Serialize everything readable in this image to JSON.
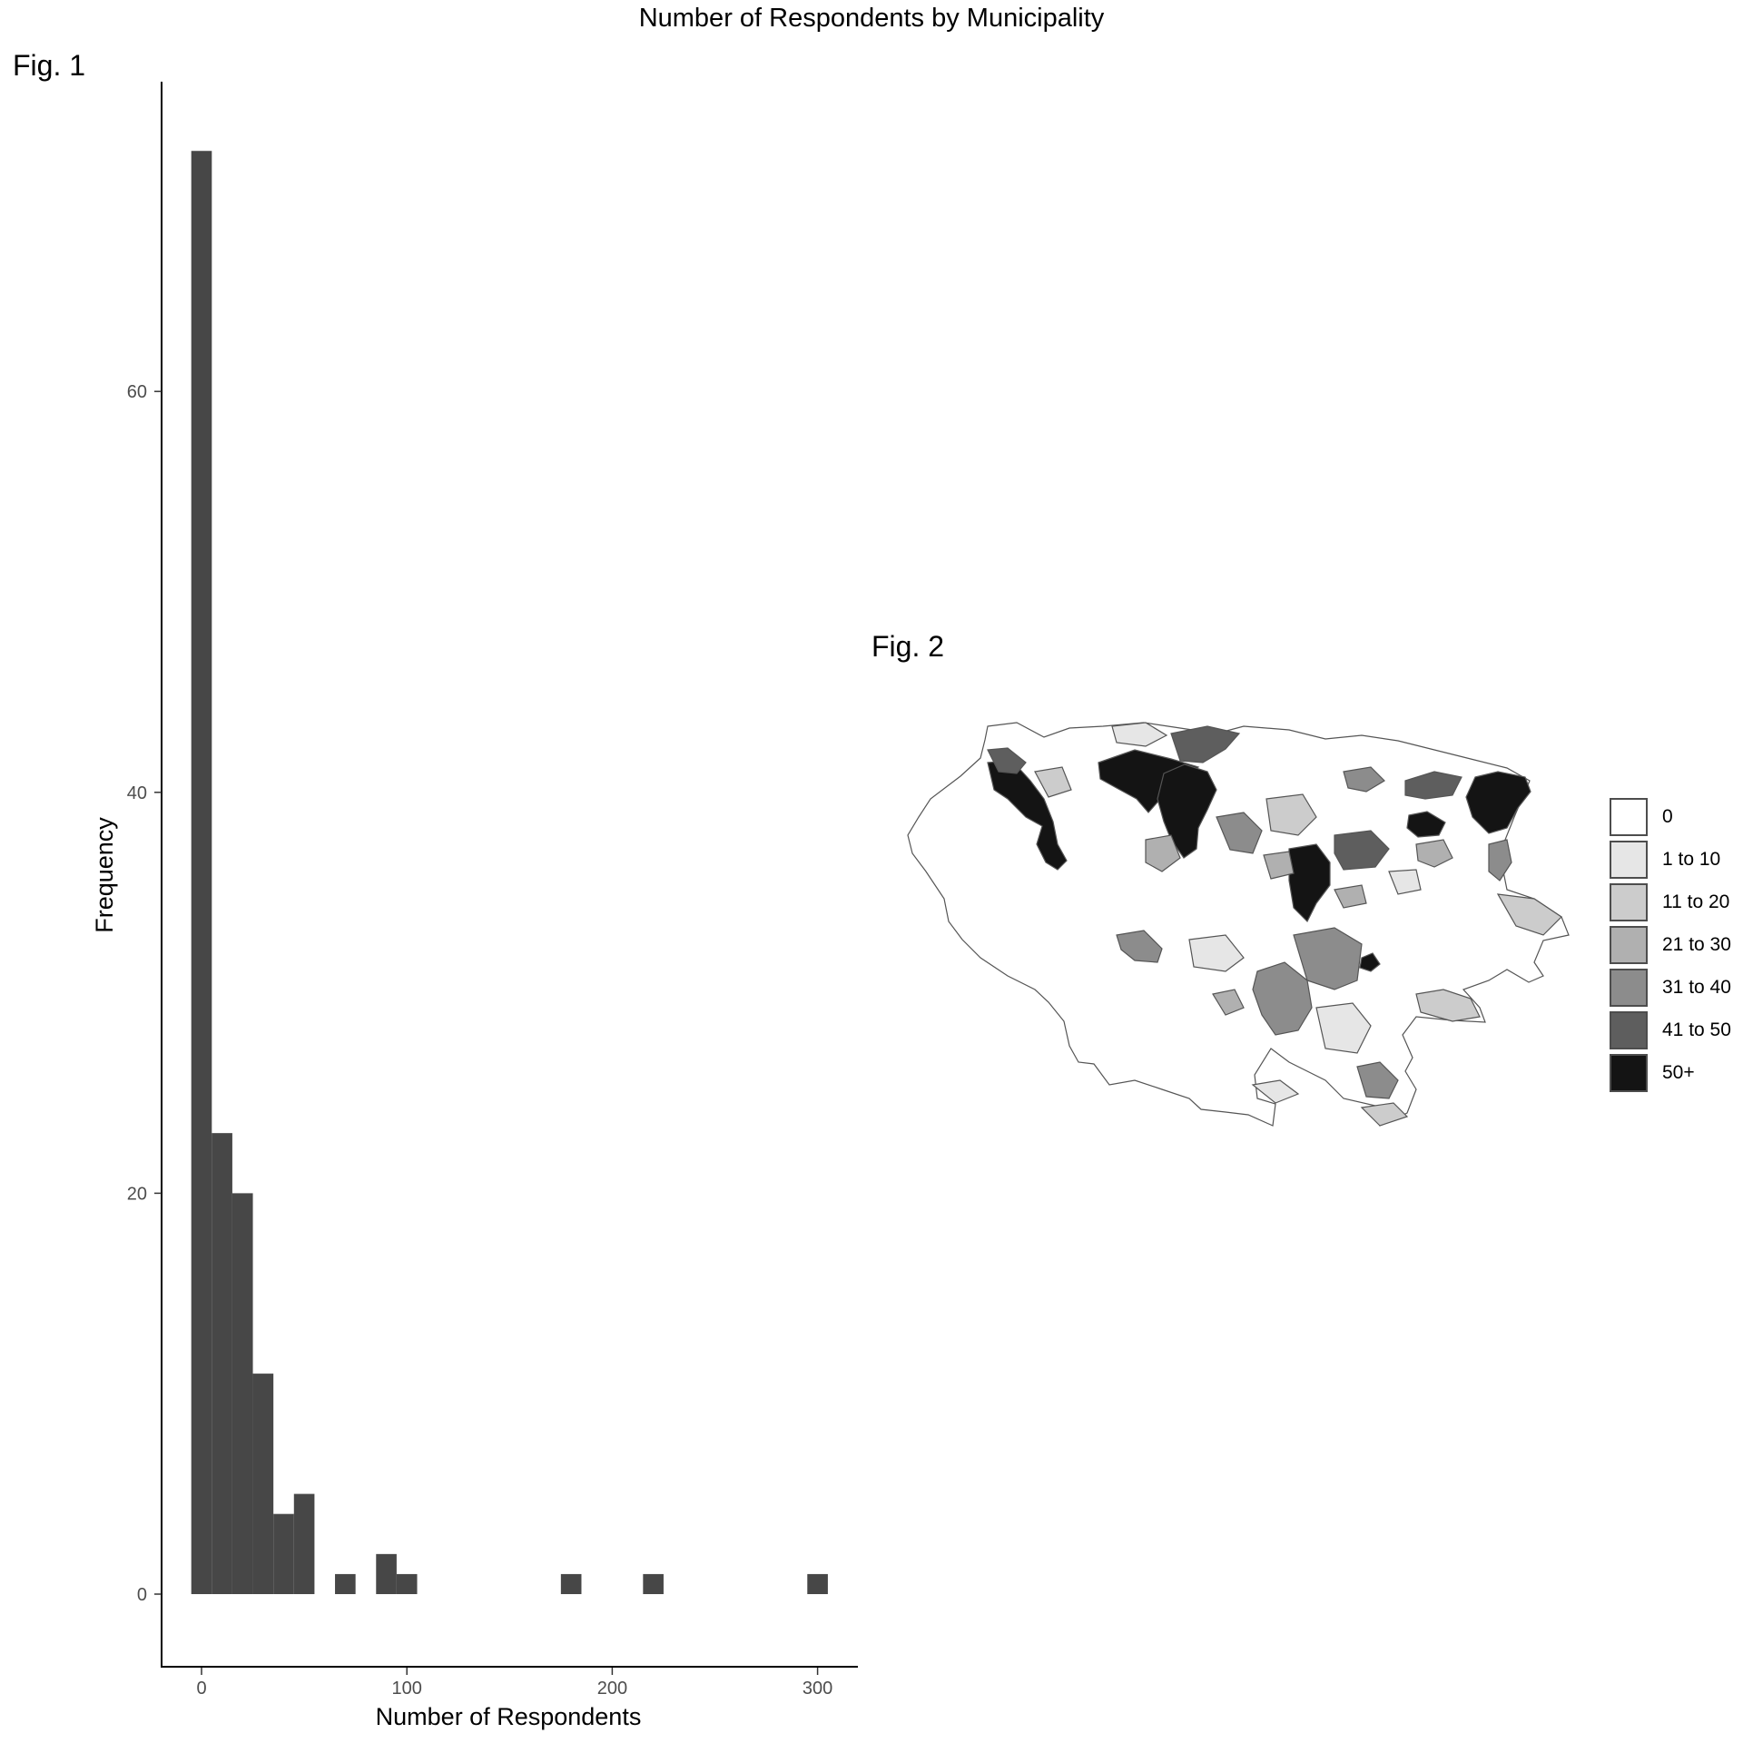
{
  "title": "Number of Respondents by Municipality",
  "fig1_label": "Fig. 1",
  "fig2_label": "Fig. 2",
  "chart_data": [
    {
      "type": "bar",
      "subtype": "histogram",
      "xlabel": "Number of Respondents",
      "ylabel": "Frequency",
      "xlim": [
        -20,
        320
      ],
      "ylim": [
        -3.5,
        75
      ],
      "xticks": [
        0,
        100,
        200,
        300
      ],
      "yticks": [
        0,
        20,
        40,
        60
      ],
      "bin_width": 10,
      "bins": [
        {
          "x0": -5,
          "x1": 5,
          "count": 72
        },
        {
          "x0": 5,
          "x1": 15,
          "count": 23
        },
        {
          "x0": 15,
          "x1": 25,
          "count": 20
        },
        {
          "x0": 25,
          "x1": 35,
          "count": 11
        },
        {
          "x0": 35,
          "x1": 45,
          "count": 4
        },
        {
          "x0": 45,
          "x1": 55,
          "count": 5
        },
        {
          "x0": 65,
          "x1": 75,
          "count": 1
        },
        {
          "x0": 85,
          "x1": 95,
          "count": 2
        },
        {
          "x0": 95,
          "x1": 105,
          "count": 1
        },
        {
          "x0": 175,
          "x1": 185,
          "count": 1
        },
        {
          "x0": 215,
          "x1": 225,
          "count": 1
        },
        {
          "x0": 295,
          "x1": 305,
          "count": 1
        }
      ],
      "bar_color": "#474747"
    },
    {
      "type": "choropleth",
      "legend_position": "right",
      "legend": [
        {
          "label": "0",
          "color": "#ffffff"
        },
        {
          "label": "1 to 10",
          "color": "#e6e6e6"
        },
        {
          "label": "11 to 20",
          "color": "#cccccc"
        },
        {
          "label": "21 to 30",
          "color": "#b0b0b0"
        },
        {
          "label": "31 to 40",
          "color": "#8c8c8c"
        },
        {
          "label": "41 to 50",
          "color": "#5e5e5e"
        },
        {
          "label": "50+",
          "color": "#141414"
        }
      ]
    }
  ]
}
